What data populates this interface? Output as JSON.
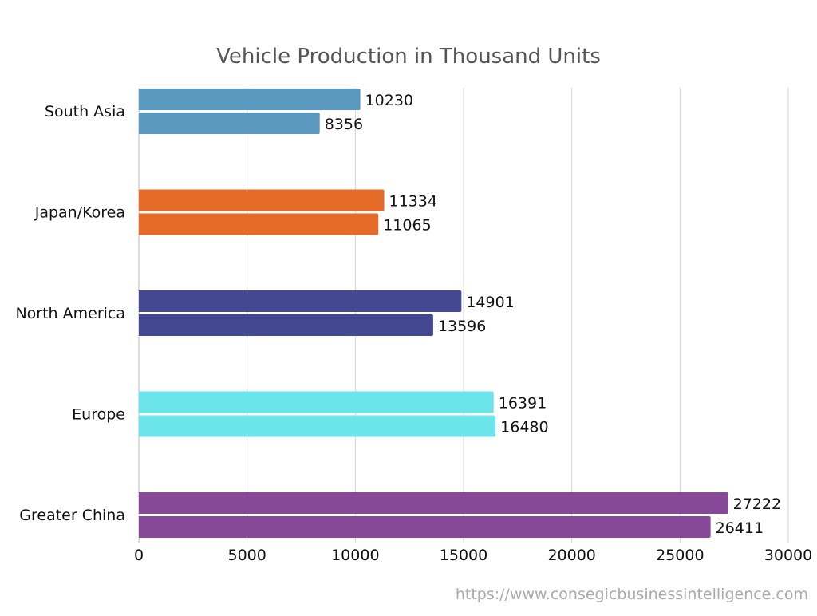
{
  "chart_data": {
    "type": "bar",
    "orientation": "horizontal",
    "title": "Vehicle Production in Thousand Units",
    "categories": [
      "South Asia",
      "Japan/Korea",
      "North America",
      "Europe",
      "Greater China"
    ],
    "series": [
      {
        "values": [
          10230,
          11334,
          14901,
          16391,
          27222
        ]
      },
      {
        "values": [
          8356,
          11065,
          13596,
          16480,
          26411
        ]
      }
    ],
    "category_colors": [
      "#5a98bd",
      "#e46a27",
      "#444893",
      "#6ce5ea",
      "#87489a"
    ],
    "xlim": [
      0,
      30000
    ],
    "xticks": [
      0,
      5000,
      10000,
      15000,
      20000,
      25000,
      30000
    ],
    "grid": "vertical",
    "data_labels": true,
    "legend": "none"
  },
  "footer": {
    "source": "https://www.consegicbusinessintelligence.com"
  }
}
